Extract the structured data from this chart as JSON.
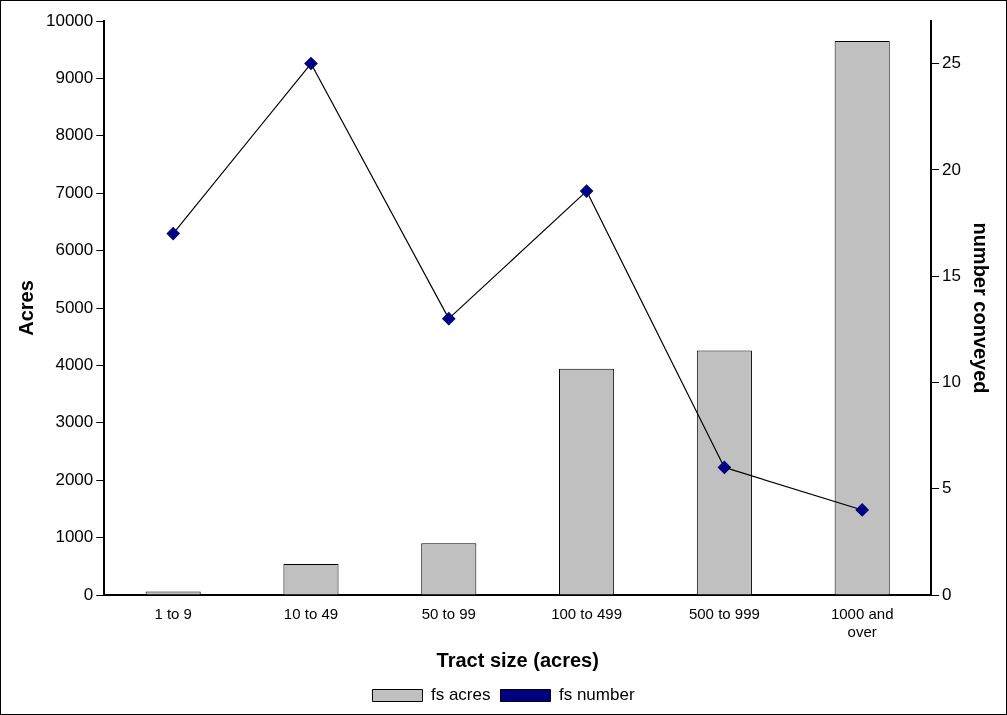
{
  "chart_data": {
    "type": "bar",
    "xlabel": "Tract size (acres)",
    "ylabel": "Acres",
    "y2label": "number conveyed",
    "categories": [
      "1 to 9",
      "10 to 49",
      "50 to 99",
      "100 to 499",
      "500 to 999",
      "1000 and over"
    ],
    "series": [
      {
        "name": "fs acres",
        "color": "#c0c0c0",
        "values": [
          60,
          540,
          900,
          3940,
          4260,
          9650
        ]
      },
      {
        "name": "fs number",
        "type": "line",
        "axis": "y2",
        "color": "#000080",
        "values": [
          17,
          25,
          13,
          19,
          6,
          4
        ]
      }
    ],
    "ylim": [
      0,
      10000
    ],
    "yticks": [
      0,
      1000,
      2000,
      3000,
      4000,
      5000,
      6000,
      7000,
      8000,
      9000,
      10000
    ],
    "y2lim": [
      0,
      27
    ],
    "y2ticks": [
      0,
      5,
      10,
      15,
      20,
      25
    ],
    "grid": false,
    "legend": "bottom",
    "marker": "diamond",
    "line_style": "solid"
  }
}
